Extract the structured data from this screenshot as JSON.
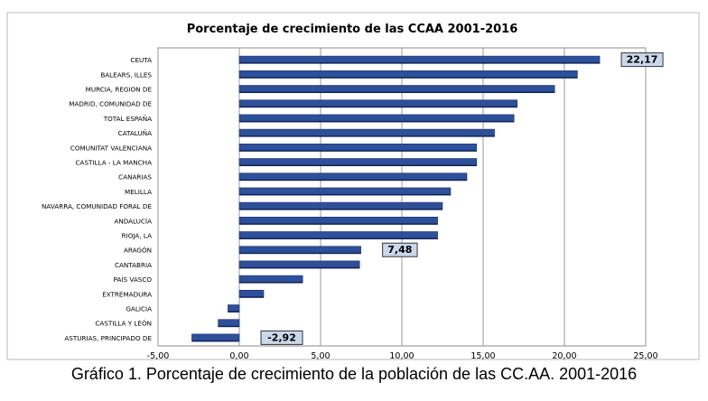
{
  "chart_data": {
    "type": "bar",
    "orientation": "horizontal",
    "title": "Porcentaje  de crecimiento de las CCAA 2001-2016",
    "categories": [
      "CEUTA",
      "BALEARS, ILLES",
      "MURCIA, REGION DE",
      "MADRID, COMUNIDAD DE",
      "TOTAL ESPAÑA",
      "CATALUÑA",
      "COMUNITAT VALENCIANA",
      "CASTILLA - LA MANCHA",
      "CANARIAS",
      "MELILLA",
      "NAVARRA, COMUNIDAD FORAL DE",
      "ANDALUCÍA",
      "RIOJA, LA",
      "ARAGÓN",
      "CANTABRIA",
      "PAÍS VASCO",
      "EXTREMADURA",
      "GALICIA",
      "CASTILLA Y LEÓN",
      "ASTURIAS, PRINCIPADO DE"
    ],
    "values": [
      22.17,
      20.8,
      19.4,
      17.1,
      16.9,
      15.7,
      14.6,
      14.6,
      14.0,
      13.0,
      12.5,
      12.2,
      12.2,
      7.48,
      7.4,
      3.9,
      1.5,
      -0.7,
      -1.3,
      -2.92
    ],
    "data_labels": [
      {
        "category": "CEUTA",
        "text": "22,17"
      },
      {
        "category": "ARAGÓN",
        "text": "7,48"
      },
      {
        "category": "ASTURIAS, PRINCIPADO DE",
        "text": "-2,92"
      }
    ],
    "xlim": [
      -5,
      25
    ],
    "x_ticks": [
      -5,
      0,
      5,
      10,
      15,
      20,
      25
    ],
    "x_tick_labels": [
      "-5,00",
      "0,00",
      "5,00",
      "10,00",
      "15,00",
      "20,00",
      "25,00"
    ],
    "grid": "vertical",
    "legend": "none",
    "bar_color": "#2e4f9a",
    "xlabel": "",
    "ylabel": ""
  },
  "caption": "Gráfico 1. Porcentaje de crecimiento de la población de las CC.AA. 2001-2016"
}
